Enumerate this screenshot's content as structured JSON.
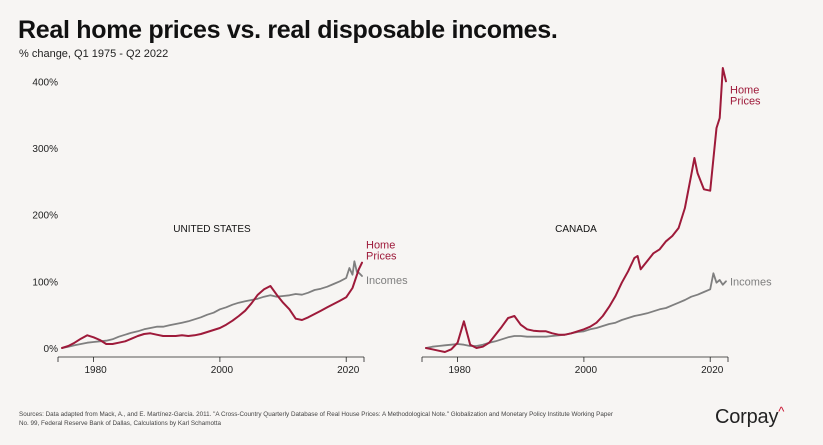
{
  "title": "Real home prices vs. real disposable incomes.",
  "subtitle": "% change, Q1 1975 - Q2 2022",
  "source": "Sources: Data adapted from Mack, A., and E. Martínez-García. 2011. \"A Cross-Country Quarterly Database of Real House Prices: A Methodological Note.\" Globalization and Monetary Policy Institute Working Paper No. 99, Federal Reserve Bank of Dallas, Calculations by Karl Schamotta",
  "brand": {
    "name": "Corpay",
    "mark": "^"
  },
  "colors": {
    "home_prices": "#9e1a3a",
    "incomes": "#7f7f7f",
    "background": "#f7f5f3",
    "brand_accent": "#c8102e"
  },
  "chart_data": [
    {
      "type": "line",
      "title": "UNITED STATES",
      "xlabel": "",
      "ylabel": "",
      "xlim": [
        1975,
        2022.5
      ],
      "ylim": [
        0,
        420
      ],
      "yticks": [
        0,
        100,
        200,
        300,
        400
      ],
      "ytick_labels": [
        "0%",
        "100%",
        "200%",
        "300%",
        "400%"
      ],
      "xticks": [
        1980,
        2000,
        2020
      ],
      "xtick_labels": [
        "1980",
        "2000",
        "2020"
      ],
      "grid": false,
      "series": [
        {
          "name": "Home Prices",
          "label": "Home\nPrices",
          "x": [
            1975,
            1976,
            1977,
            1978,
            1979,
            1980,
            1981,
            1982,
            1983,
            1984,
            1985,
            1986,
            1987,
            1988,
            1989,
            1990,
            1991,
            1992,
            1993,
            1994,
            1995,
            1996,
            1997,
            1998,
            1999,
            2000,
            2001,
            2002,
            2003,
            2004,
            2005,
            2006,
            2007,
            2008,
            2009,
            2010,
            2011,
            2012,
            2013,
            2014,
            2015,
            2016,
            2017,
            2018,
            2019,
            2020,
            2021,
            2022,
            2022.5
          ],
          "values": [
            0,
            3,
            8,
            14,
            19,
            16,
            12,
            6,
            6,
            8,
            10,
            14,
            18,
            21,
            22,
            20,
            18,
            18,
            18,
            19,
            18,
            19,
            21,
            24,
            27,
            30,
            35,
            41,
            48,
            56,
            67,
            80,
            88,
            93,
            80,
            68,
            58,
            44,
            42,
            46,
            51,
            56,
            61,
            66,
            71,
            76,
            90,
            118,
            128
          ]
        },
        {
          "name": "Incomes",
          "label": "Incomes",
          "x": [
            1975,
            1976,
            1977,
            1978,
            1979,
            1980,
            1981,
            1982,
            1983,
            1984,
            1985,
            1986,
            1987,
            1988,
            1989,
            1990,
            1991,
            1992,
            1993,
            1994,
            1995,
            1996,
            1997,
            1998,
            1999,
            2000,
            2001,
            2002,
            2003,
            2004,
            2005,
            2006,
            2007,
            2008,
            2009,
            2010,
            2011,
            2012,
            2013,
            2014,
            2015,
            2016,
            2017,
            2018,
            2019,
            2020,
            2020.5,
            2021,
            2021.3,
            2021.7,
            2022,
            2022.5
          ],
          "values": [
            0,
            2,
            4,
            6,
            8,
            9,
            10,
            11,
            13,
            17,
            20,
            23,
            25,
            28,
            30,
            32,
            32,
            34,
            36,
            38,
            40,
            43,
            46,
            50,
            53,
            58,
            61,
            65,
            68,
            70,
            72,
            74,
            77,
            79,
            77,
            78,
            79,
            81,
            80,
            83,
            87,
            89,
            92,
            96,
            100,
            105,
            120,
            110,
            130,
            114,
            113,
            108
          ]
        }
      ]
    },
    {
      "type": "line",
      "title": "CANADA",
      "xlabel": "",
      "ylabel": "",
      "xlim": [
        1975,
        2022.5
      ],
      "ylim": [
        0,
        420
      ],
      "xticks": [
        1980,
        2000,
        2020
      ],
      "xtick_labels": [
        "1980",
        "2000",
        "2020"
      ],
      "grid": false,
      "series": [
        {
          "name": "Home Prices",
          "label": "Home\nPrices",
          "x": [
            1975,
            1976,
            1977,
            1978,
            1979,
            1980,
            1981,
            1981.5,
            1982,
            1983,
            1984,
            1985,
            1986,
            1987,
            1988,
            1989,
            1990,
            1991,
            1992,
            1993,
            1994,
            1995,
            1996,
            1997,
            1998,
            1999,
            2000,
            2001,
            2002,
            2003,
            2004,
            2005,
            2006,
            2007,
            2008,
            2008.5,
            2009,
            2010,
            2011,
            2012,
            2013,
            2014,
            2015,
            2016,
            2017,
            2017.5,
            2018,
            2019,
            2020,
            2021,
            2021.5,
            2022,
            2022.5
          ],
          "values": [
            0,
            -2,
            -4,
            -6,
            -2,
            8,
            40,
            22,
            5,
            0,
            2,
            8,
            20,
            32,
            45,
            48,
            35,
            28,
            26,
            25,
            25,
            22,
            20,
            20,
            22,
            25,
            28,
            32,
            38,
            48,
            62,
            78,
            98,
            115,
            135,
            138,
            118,
            130,
            142,
            148,
            160,
            168,
            180,
            210,
            260,
            285,
            262,
            238,
            236,
            330,
            345,
            420,
            400
          ]
        },
        {
          "name": "Incomes",
          "label": "Incomes",
          "x": [
            1975,
            1976,
            1977,
            1978,
            1979,
            1980,
            1981,
            1982,
            1983,
            1984,
            1985,
            1986,
            1987,
            1988,
            1989,
            1990,
            1991,
            1992,
            1993,
            1994,
            1995,
            1996,
            1997,
            1998,
            1999,
            2000,
            2001,
            2002,
            2003,
            2004,
            2005,
            2006,
            2007,
            2008,
            2009,
            2010,
            2011,
            2012,
            2013,
            2014,
            2015,
            2016,
            2017,
            2018,
            2019,
            2020,
            2020.5,
            2021,
            2021.5,
            2022,
            2022.5
          ],
          "values": [
            0,
            2,
            3,
            4,
            5,
            6,
            5,
            3,
            3,
            5,
            8,
            10,
            13,
            16,
            18,
            18,
            17,
            17,
            17,
            17,
            18,
            19,
            20,
            22,
            24,
            25,
            28,
            30,
            33,
            36,
            38,
            42,
            45,
            48,
            50,
            52,
            55,
            58,
            60,
            64,
            68,
            72,
            77,
            80,
            84,
            88,
            112,
            98,
            102,
            95,
            100
          ]
        }
      ]
    }
  ]
}
